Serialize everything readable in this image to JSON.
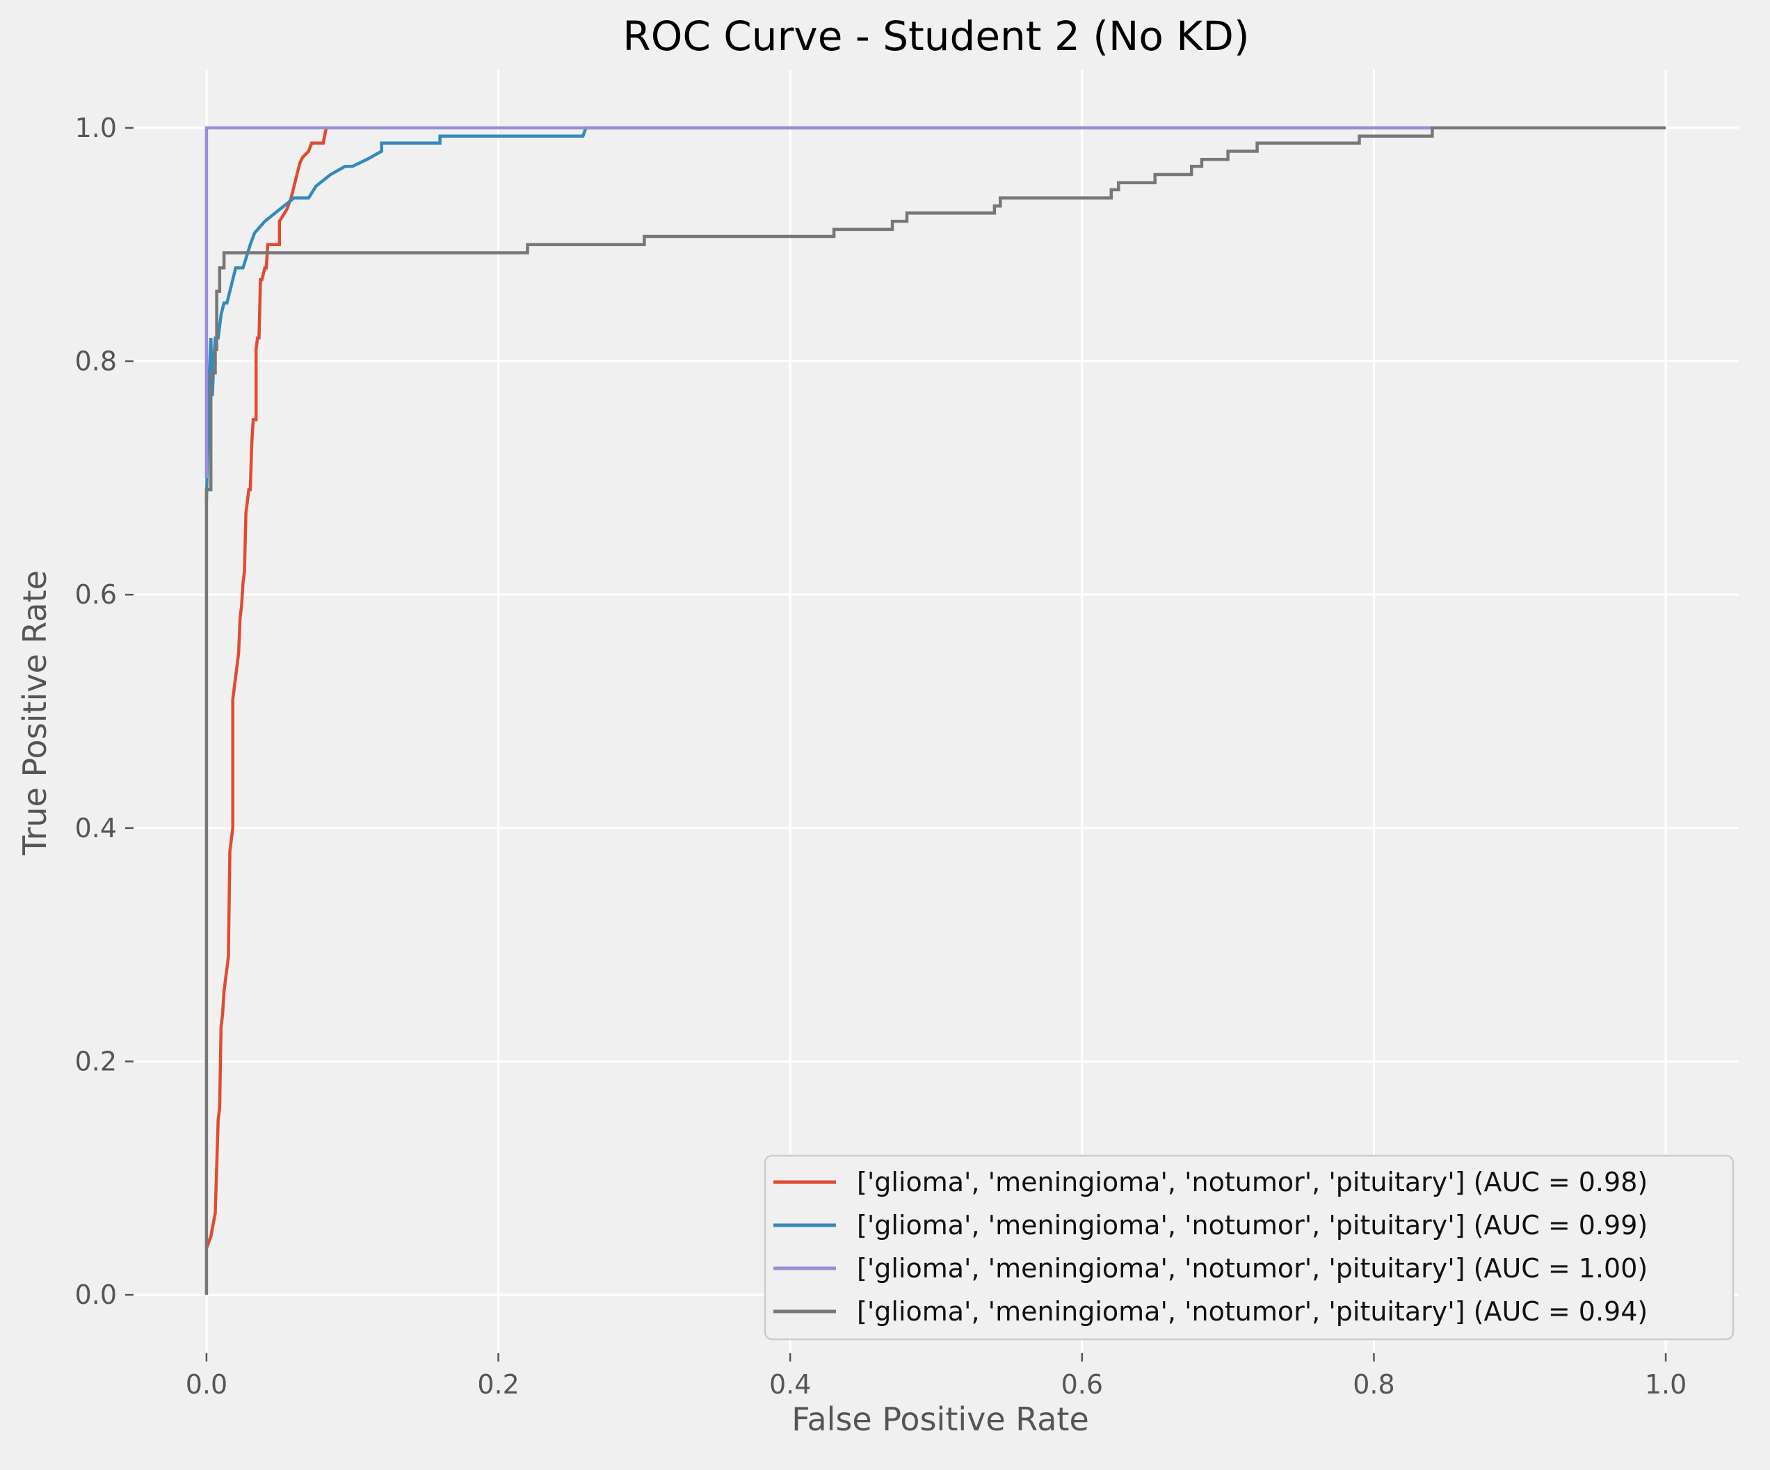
{
  "chart_data": {
    "type": "line",
    "title": "ROC Curve - Student 2 (No KD)",
    "xlabel": "False Positive Rate",
    "ylabel": "True Positive Rate",
    "xlim": [
      -0.05,
      1.05
    ],
    "ylim": [
      -0.05,
      1.05
    ],
    "xticks": [
      "0.0",
      "0.2",
      "0.4",
      "0.6",
      "0.8",
      "1.0"
    ],
    "yticks": [
      "0.0",
      "0.2",
      "0.4",
      "0.6",
      "0.8",
      "1.0"
    ],
    "grid": true,
    "legend_position": "lower-right",
    "series": [
      {
        "name": "['glioma', 'meningioma', 'notumor', 'pituitary'] (AUC = 0.98)",
        "color": "#E24A33",
        "points": [
          [
            0,
            0.04
          ],
          [
            0.003,
            0.05
          ],
          [
            0.006,
            0.07
          ],
          [
            0.008,
            0.15
          ],
          [
            0.009,
            0.16
          ],
          [
            0.01,
            0.23
          ],
          [
            0.011,
            0.24
          ],
          [
            0.012,
            0.26
          ],
          [
            0.013,
            0.27
          ],
          [
            0.014,
            0.28
          ],
          [
            0.015,
            0.29
          ],
          [
            0.016,
            0.38
          ],
          [
            0.017,
            0.39
          ],
          [
            0.018,
            0.4
          ],
          [
            0.018,
            0.51
          ],
          [
            0.019,
            0.52
          ],
          [
            0.02,
            0.53
          ],
          [
            0.021,
            0.54
          ],
          [
            0.022,
            0.55
          ],
          [
            0.023,
            0.58
          ],
          [
            0.024,
            0.59
          ],
          [
            0.025,
            0.61
          ],
          [
            0.026,
            0.62
          ],
          [
            0.027,
            0.67
          ],
          [
            0.028,
            0.68
          ],
          [
            0.029,
            0.69
          ],
          [
            0.03,
            0.69
          ],
          [
            0.031,
            0.73
          ],
          [
            0.032,
            0.75
          ],
          [
            0.034,
            0.75
          ],
          [
            0.034,
            0.81
          ],
          [
            0.035,
            0.82
          ],
          [
            0.036,
            0.82
          ],
          [
            0.037,
            0.87
          ],
          [
            0.038,
            0.87
          ],
          [
            0.04,
            0.88
          ],
          [
            0.041,
            0.88
          ],
          [
            0.042,
            0.9
          ],
          [
            0.05,
            0.9
          ],
          [
            0.05,
            0.92
          ],
          [
            0.055,
            0.93
          ],
          [
            0.058,
            0.94
          ],
          [
            0.06,
            0.95
          ],
          [
            0.062,
            0.96
          ],
          [
            0.064,
            0.97
          ],
          [
            0.066,
            0.975
          ],
          [
            0.07,
            0.98
          ],
          [
            0.072,
            0.987
          ],
          [
            0.08,
            0.987
          ],
          [
            0.082,
            1.0
          ],
          [
            0.084,
            1.0
          ]
        ]
      },
      {
        "name": "['glioma', 'meningioma', 'notumor', 'pituitary'] (AUC = 0.99)",
        "color": "#348ABD",
        "points": [
          [
            0,
            0.68
          ],
          [
            0.002,
            0.79
          ],
          [
            0.003,
            0.82
          ],
          [
            0.004,
            0.77
          ],
          [
            0.005,
            0.8
          ],
          [
            0.006,
            0.82
          ],
          [
            0.008,
            0.82
          ],
          [
            0.009,
            0.83
          ],
          [
            0.01,
            0.84
          ],
          [
            0.012,
            0.85
          ],
          [
            0.014,
            0.85
          ],
          [
            0.016,
            0.86
          ],
          [
            0.018,
            0.87
          ],
          [
            0.02,
            0.88
          ],
          [
            0.025,
            0.88
          ],
          [
            0.03,
            0.9
          ],
          [
            0.033,
            0.91
          ],
          [
            0.04,
            0.92
          ],
          [
            0.05,
            0.93
          ],
          [
            0.06,
            0.94
          ],
          [
            0.07,
            0.94
          ],
          [
            0.075,
            0.95
          ],
          [
            0.085,
            0.96
          ],
          [
            0.095,
            0.967
          ],
          [
            0.1,
            0.967
          ],
          [
            0.11,
            0.973
          ],
          [
            0.12,
            0.98
          ],
          [
            0.12,
            0.987
          ],
          [
            0.16,
            0.987
          ],
          [
            0.16,
            0.993
          ],
          [
            0.258,
            0.993
          ],
          [
            0.26,
            1.0
          ],
          [
            0.84,
            1.0
          ]
        ]
      },
      {
        "name": "['glioma', 'meningioma', 'notumor', 'pituitary'] (AUC = 1.00)",
        "color": "#988ED5",
        "points": [
          [
            0,
            0.7
          ],
          [
            0,
            1.0
          ],
          [
            0.84,
            1.0
          ]
        ]
      },
      {
        "name": "['glioma', 'meningioma', 'notumor', 'pituitary'] (AUC = 0.94)",
        "color": "#777777",
        "points": [
          [
            0,
            0
          ],
          [
            0,
            0.69
          ],
          [
            0.003,
            0.69
          ],
          [
            0.003,
            0.79
          ],
          [
            0.006,
            0.79
          ],
          [
            0.006,
            0.81
          ],
          [
            0.007,
            0.81
          ],
          [
            0.007,
            0.86
          ],
          [
            0.009,
            0.86
          ],
          [
            0.009,
            0.88
          ],
          [
            0.012,
            0.88
          ],
          [
            0.012,
            0.893
          ],
          [
            0.22,
            0.893
          ],
          [
            0.22,
            0.9
          ],
          [
            0.3,
            0.9
          ],
          [
            0.3,
            0.907
          ],
          [
            0.43,
            0.907
          ],
          [
            0.43,
            0.913
          ],
          [
            0.47,
            0.913
          ],
          [
            0.47,
            0.92
          ],
          [
            0.48,
            0.92
          ],
          [
            0.48,
            0.927
          ],
          [
            0.54,
            0.927
          ],
          [
            0.54,
            0.933
          ],
          [
            0.544,
            0.933
          ],
          [
            0.544,
            0.94
          ],
          [
            0.62,
            0.94
          ],
          [
            0.62,
            0.947
          ],
          [
            0.625,
            0.947
          ],
          [
            0.625,
            0.953
          ],
          [
            0.65,
            0.953
          ],
          [
            0.65,
            0.96
          ],
          [
            0.675,
            0.96
          ],
          [
            0.675,
            0.967
          ],
          [
            0.682,
            0.967
          ],
          [
            0.682,
            0.973
          ],
          [
            0.7,
            0.973
          ],
          [
            0.7,
            0.98
          ],
          [
            0.72,
            0.98
          ],
          [
            0.72,
            0.987
          ],
          [
            0.79,
            0.987
          ],
          [
            0.79,
            0.993
          ],
          [
            0.84,
            0.993
          ],
          [
            0.84,
            1.0
          ],
          [
            1.0,
            1.0
          ]
        ]
      }
    ]
  }
}
